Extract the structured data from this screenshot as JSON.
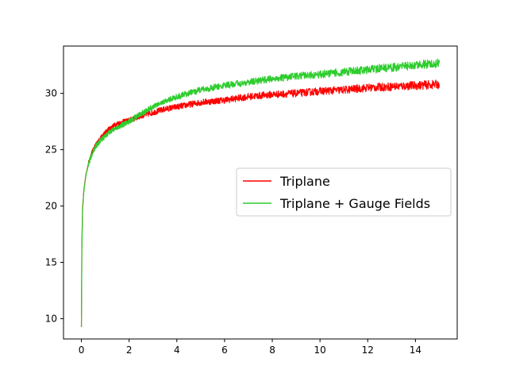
{
  "chart_data": {
    "type": "line",
    "title": "",
    "xlabel": "",
    "ylabel": "",
    "xlim": [
      -0.75,
      15.75
    ],
    "ylim": [
      8.2,
      34.2
    ],
    "x_ticks": [
      0,
      2,
      4,
      6,
      8,
      10,
      12,
      14
    ],
    "x_tick_labels": [
      "0",
      "2",
      "4",
      "6",
      "8",
      "10",
      "12",
      "14"
    ],
    "y_ticks": [
      10,
      15,
      20,
      25,
      30
    ],
    "y_tick_labels": [
      "10",
      "15",
      "20",
      "25",
      "30"
    ],
    "grid": false,
    "legend_position": "center-right",
    "series": [
      {
        "name": "Triplane",
        "color": "#ff0000",
        "x": [
          0,
          0.02,
          0.05,
          0.1,
          0.15,
          0.2,
          0.3,
          0.4,
          0.5,
          0.6,
          0.8,
          1.0,
          1.2,
          1.5,
          2.0,
          2.5,
          3.0,
          3.5,
          4.0,
          5.0,
          6.0,
          7.0,
          8.0,
          9.0,
          10.0,
          11.0,
          12.0,
          13.0,
          14.0,
          15.0
        ],
        "y": [
          9.3,
          16.5,
          19.8,
          21.3,
          22.2,
          22.9,
          23.8,
          24.5,
          25.0,
          25.4,
          26.0,
          26.5,
          26.9,
          27.3,
          27.6,
          28.0,
          28.3,
          28.6,
          28.8,
          29.2,
          29.4,
          29.7,
          29.9,
          30.0,
          30.2,
          30.3,
          30.5,
          30.6,
          30.7,
          30.8
        ]
      },
      {
        "name": "Triplane + Gauge Fields",
        "color": "#2ecc2e",
        "x": [
          0,
          0.02,
          0.05,
          0.1,
          0.15,
          0.2,
          0.3,
          0.4,
          0.5,
          0.6,
          0.8,
          1.0,
          1.2,
          1.5,
          2.0,
          2.5,
          3.0,
          3.5,
          4.0,
          5.0,
          6.0,
          7.0,
          8.0,
          9.0,
          10.0,
          11.0,
          12.0,
          13.0,
          14.0,
          15.0
        ],
        "y": [
          9.3,
          16.3,
          19.6,
          21.2,
          22.1,
          22.8,
          23.7,
          24.4,
          24.9,
          25.3,
          25.8,
          26.2,
          26.6,
          27.0,
          27.5,
          28.2,
          28.8,
          29.3,
          29.7,
          30.3,
          30.7,
          31.0,
          31.3,
          31.5,
          31.7,
          31.9,
          32.1,
          32.3,
          32.5,
          32.7
        ]
      }
    ]
  }
}
